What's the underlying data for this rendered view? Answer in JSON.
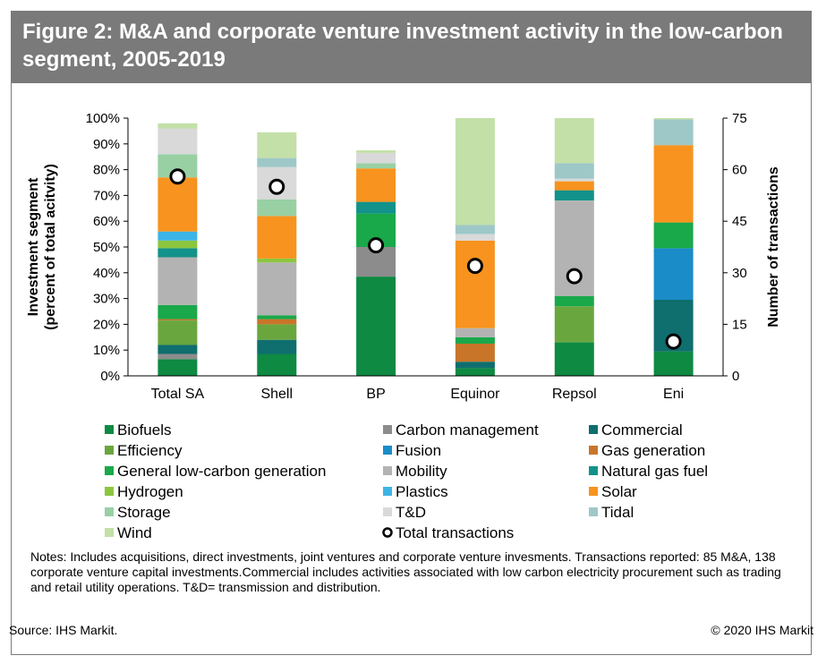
{
  "header": {
    "title": "Figure 2: M&A and corporate venture investment activity in the low-carbon segment, 2005-2019"
  },
  "footer": {
    "notes": "Notes: Includes acquisitions, direct investments, joint ventures and corporate venture invesments. Transactions reported: 85 M&A, 138 corporate venture capital investments.Commercial includes activities associated with low carbon electricity procurement such as trading and retail utility operations. T&D= transmission and distribution.",
    "source": "Source: IHS Markit.",
    "copyright": "© 2020 IHS Markit"
  },
  "colors": {
    "Biofuels": "#0e8a43",
    "Carbon management": "#8c8c8c",
    "Commercial": "#0f6e6e",
    "Efficiency": "#6aa63e",
    "Fusion": "#1a8cc8",
    "Gas generation": "#c8752a",
    "General low-carbon generation": "#19a84a",
    "Mobility": "#b3b3b3",
    "Natural gas fuel": "#12928a",
    "Hydrogen": "#8cc63f",
    "Plastics": "#3cb4e6",
    "Solar": "#f7931e",
    "Storage": "#98d0a4",
    "T&D": "#d9d9d9",
    "Tidal": "#9ec8c8",
    "Wind": "#c3e0a8",
    "marker_stroke": "#000000",
    "marker_fill": "#ffffff"
  },
  "chart_data": {
    "type": "bar",
    "stacked": true,
    "categories": [
      "Total SA",
      "Shell",
      "BP",
      "Equinor",
      "Repsol",
      "Eni"
    ],
    "ylabel": "Investment segment (percent of total acitvity)",
    "y2label": "Number of transactions",
    "ylim": [
      0,
      100
    ],
    "y2lim": [
      0,
      75
    ],
    "yticks": [
      "0%",
      "10%",
      "20%",
      "30%",
      "40%",
      "50%",
      "60%",
      "70%",
      "80%",
      "90%",
      "100%"
    ],
    "y2ticks": [
      "0",
      "15",
      "30",
      "45",
      "60",
      "75"
    ],
    "legend_placement": "bottom",
    "series": [
      {
        "name": "Biofuels",
        "values": [
          6.5,
          8.5,
          38.5,
          3,
          13,
          9.5
        ]
      },
      {
        "name": "Carbon management",
        "values": [
          2,
          0,
          11.5,
          0,
          0,
          0
        ]
      },
      {
        "name": "Commercial",
        "values": [
          3.5,
          5.5,
          0,
          2.5,
          0,
          20
        ]
      },
      {
        "name": "Efficiency",
        "values": [
          9.5,
          6,
          0,
          0,
          14,
          0
        ]
      },
      {
        "name": "Fusion",
        "values": [
          0,
          0,
          0,
          0,
          0,
          20
        ]
      },
      {
        "name": "Gas generation",
        "values": [
          0.5,
          2,
          0,
          7,
          0,
          0
        ]
      },
      {
        "name": "General low-carbon generation",
        "values": [
          5.5,
          1.5,
          13,
          2.5,
          4,
          10
        ]
      },
      {
        "name": "Mobility",
        "values": [
          18.5,
          20.5,
          0,
          3.5,
          37,
          0
        ]
      },
      {
        "name": "Natural gas fuel",
        "values": [
          3.5,
          0,
          4.5,
          0,
          4,
          0
        ]
      },
      {
        "name": "Hydrogen",
        "values": [
          3,
          1.5,
          0,
          0,
          0,
          0
        ]
      },
      {
        "name": "Plastics",
        "values": [
          3.5,
          0,
          0,
          0,
          0,
          0
        ]
      },
      {
        "name": "Solar",
        "values": [
          21,
          16.5,
          13,
          34,
          3.5,
          30
        ]
      },
      {
        "name": "Storage",
        "values": [
          9,
          6.5,
          2,
          0,
          0,
          0
        ]
      },
      {
        "name": "T&D",
        "values": [
          10,
          12.5,
          4,
          2.5,
          1,
          0
        ]
      },
      {
        "name": "Tidal",
        "values": [
          0,
          3.5,
          0,
          3.5,
          6,
          10
        ]
      },
      {
        "name": "Wind",
        "values": [
          2,
          10,
          1,
          41.5,
          17.5,
          0.5
        ]
      }
    ],
    "total_transactions": {
      "name": "Total transactions",
      "values": [
        58,
        55,
        38,
        32,
        29,
        10
      ]
    },
    "legend": [
      "Biofuels",
      "Carbon management",
      "Commercial",
      "Efficiency",
      "Fusion",
      "Gas generation",
      "General low-carbon generation",
      "Mobility",
      "Natural gas fuel",
      "Hydrogen",
      "Plastics",
      "Solar",
      "Storage",
      "T&D",
      "Tidal",
      "Wind",
      "Total transactions"
    ]
  }
}
